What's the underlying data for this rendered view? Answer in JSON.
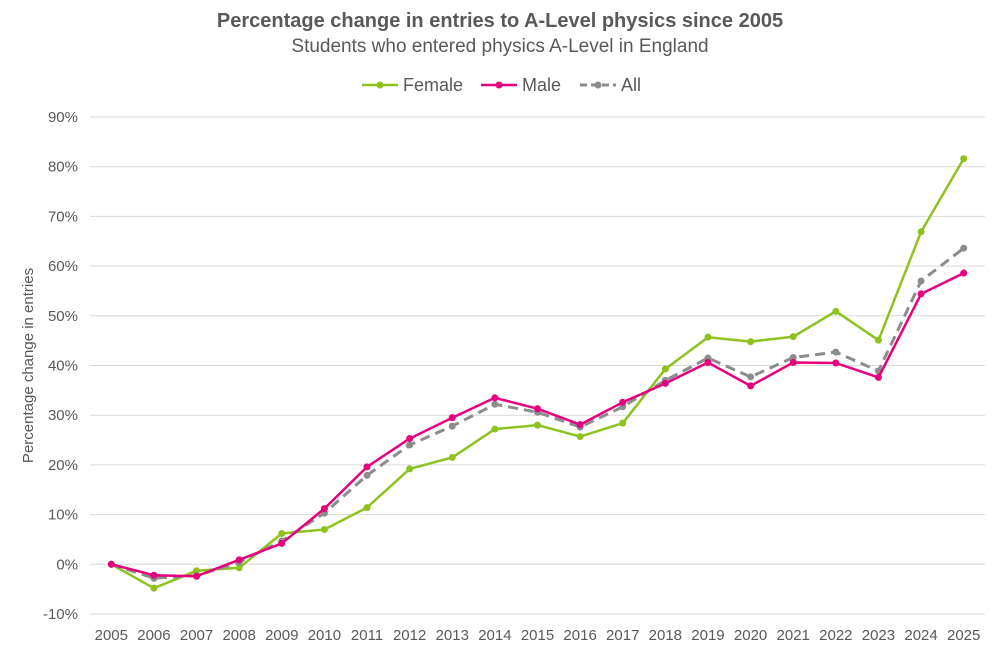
{
  "chart_data": {
    "type": "line",
    "title": "Percentage change in entries to A-Level physics since 2005",
    "subtitle": "Students who entered physics A-Level in England",
    "ylabel": "Percentage change in entries",
    "xlabel": "",
    "ylim": [
      -10,
      90
    ],
    "yticks": [
      -10,
      0,
      10,
      20,
      30,
      40,
      50,
      60,
      70,
      80,
      90
    ],
    "ytick_labels": [
      "-10%",
      "0%",
      "10%",
      "20%",
      "30%",
      "40%",
      "50%",
      "60%",
      "70%",
      "80%",
      "90%"
    ],
    "grid": "horizontal",
    "legend_position": "top-center",
    "categories": [
      "2005",
      "2006",
      "2007",
      "2008",
      "2009",
      "2010",
      "2011",
      "2012",
      "2013",
      "2014",
      "2015",
      "2016",
      "2017",
      "2018",
      "2019",
      "2020",
      "2021",
      "2022",
      "2023",
      "2024",
      "2025"
    ],
    "series": [
      {
        "name": "Female",
        "color": "#8dc21f",
        "style": "solid",
        "values": [
          0,
          -4.8,
          -1.3,
          -0.7,
          6.2,
          7.0,
          11.4,
          19.2,
          21.5,
          27.2,
          28.0,
          25.7,
          28.4,
          39.3,
          45.7,
          44.8,
          45.8,
          50.9,
          45.1,
          66.9,
          81.6
        ]
      },
      {
        "name": "Male",
        "color": "#e6007e",
        "style": "solid",
        "values": [
          0,
          -2.2,
          -2.4,
          0.9,
          4.2,
          11.2,
          19.6,
          25.3,
          29.5,
          33.5,
          31.3,
          28.1,
          32.6,
          36.4,
          40.6,
          35.9,
          40.6,
          40.5,
          37.6,
          54.4,
          58.6
        ]
      },
      {
        "name": "All",
        "color": "#8c8c8c",
        "style": "dashed",
        "values": [
          0,
          -2.8,
          -2.3,
          0.4,
          4.7,
          10.3,
          17.9,
          24.0,
          27.8,
          32.2,
          30.6,
          27.6,
          31.7,
          37.0,
          41.5,
          37.7,
          41.6,
          42.7,
          38.9,
          57.0,
          63.6
        ]
      }
    ]
  }
}
